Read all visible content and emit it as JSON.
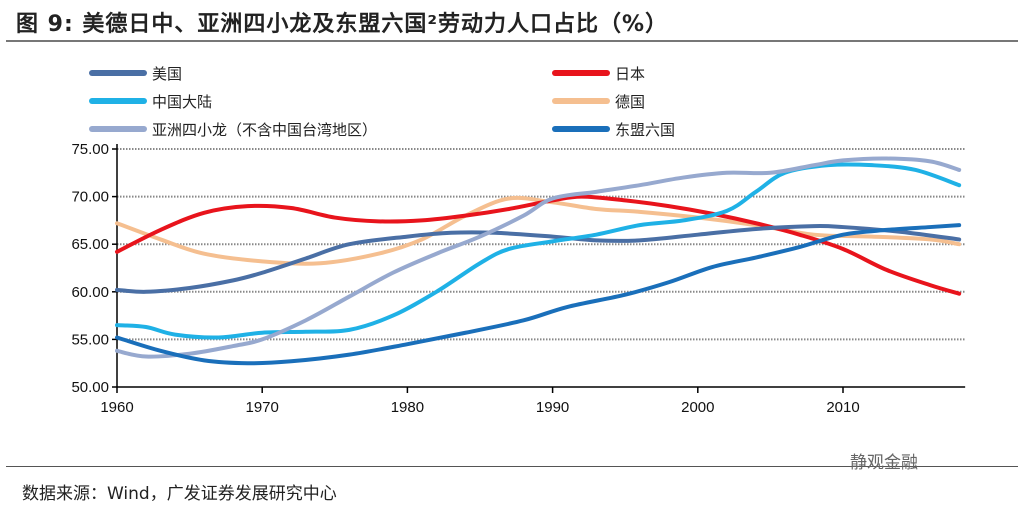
{
  "title": "图 9:  美德日中、亚洲四小龙及东盟六国²劳动力人口占比（%）",
  "source": "数据来源：Wind，广发证券发展研究中心",
  "watermark": "静观金融",
  "chart_data": {
    "type": "line",
    "title": "",
    "xlabel": "",
    "ylabel": "",
    "xlim": [
      1960,
      2018
    ],
    "ylim": [
      50,
      75
    ],
    "x_ticks": [
      1960,
      1970,
      1980,
      1990,
      2000,
      2010
    ],
    "y_ticks": [
      "50.00",
      "55.00",
      "60.00",
      "65.00",
      "70.00",
      "75.00"
    ],
    "grid": "horizontal dotted",
    "legend_position": "top",
    "series": [
      {
        "name": "美国",
        "color": "#4a6fa5",
        "points": [
          [
            1960,
            60.2
          ],
          [
            1962,
            60.0
          ],
          [
            1965,
            60.4
          ],
          [
            1968,
            61.2
          ],
          [
            1970,
            62
          ],
          [
            1973,
            63.5
          ],
          [
            1976,
            65
          ],
          [
            1980,
            65.8
          ],
          [
            1983,
            66.2
          ],
          [
            1986,
            66.2
          ],
          [
            1990,
            65.8
          ],
          [
            1993,
            65.4
          ],
          [
            1996,
            65.4
          ],
          [
            2000,
            66
          ],
          [
            2004,
            66.6
          ],
          [
            2008,
            66.9
          ],
          [
            2010,
            66.8
          ],
          [
            2014,
            66.3
          ],
          [
            2018,
            65.5
          ]
        ]
      },
      {
        "name": "日本",
        "color": "#e8141c",
        "points": [
          [
            1960,
            64.2
          ],
          [
            1963,
            66.5
          ],
          [
            1966,
            68.3
          ],
          [
            1969,
            69
          ],
          [
            1972,
            68.8
          ],
          [
            1975,
            67.8
          ],
          [
            1978,
            67.4
          ],
          [
            1981,
            67.5
          ],
          [
            1984,
            68
          ],
          [
            1987,
            68.7
          ],
          [
            1990,
            69.6
          ],
          [
            1992,
            70
          ],
          [
            1995,
            69.6
          ],
          [
            1998,
            69
          ],
          [
            2001,
            68.2
          ],
          [
            2004,
            67.2
          ],
          [
            2007,
            66
          ],
          [
            2010,
            64.5
          ],
          [
            2013,
            62.3
          ],
          [
            2016,
            60.7
          ],
          [
            2018,
            59.8
          ]
        ]
      },
      {
        "name": "中国大陆",
        "color": "#1fb1e6",
        "points": [
          [
            1960,
            56.5
          ],
          [
            1962,
            56.3
          ],
          [
            1964,
            55.5
          ],
          [
            1967,
            55.2
          ],
          [
            1970,
            55.7
          ],
          [
            1973,
            55.8
          ],
          [
            1976,
            56
          ],
          [
            1979,
            57.5
          ],
          [
            1982,
            60
          ],
          [
            1985,
            63
          ],
          [
            1987,
            64.5
          ],
          [
            1990,
            65.3
          ],
          [
            1993,
            66
          ],
          [
            1996,
            67
          ],
          [
            1999,
            67.5
          ],
          [
            2002,
            68.5
          ],
          [
            2004,
            70.5
          ],
          [
            2006,
            72.5
          ],
          [
            2009,
            73.3
          ],
          [
            2012,
            73.3
          ],
          [
            2015,
            72.8
          ],
          [
            2018,
            71.2
          ]
        ]
      },
      {
        "name": "德国",
        "color": "#f5bf90",
        "points": [
          [
            1960,
            67.2
          ],
          [
            1963,
            65.5
          ],
          [
            1966,
            64
          ],
          [
            1970,
            63.2
          ],
          [
            1974,
            63
          ],
          [
            1978,
            64
          ],
          [
            1981,
            65.5
          ],
          [
            1984,
            68
          ],
          [
            1987,
            69.8
          ],
          [
            1990,
            69.4
          ],
          [
            1993,
            68.7
          ],
          [
            1996,
            68.4
          ],
          [
            2000,
            67.8
          ],
          [
            2004,
            67
          ],
          [
            2008,
            66
          ],
          [
            2012,
            65.8
          ],
          [
            2016,
            65.5
          ],
          [
            2018,
            65
          ]
        ]
      },
      {
        "name": "亚洲四小龙（不含中国台湾地区）",
        "color": "#97a9cf",
        "points": [
          [
            1960,
            53.8
          ],
          [
            1962,
            53.2
          ],
          [
            1965,
            53.5
          ],
          [
            1968,
            54.3
          ],
          [
            1970,
            55
          ],
          [
            1973,
            57
          ],
          [
            1976,
            59.5
          ],
          [
            1979,
            62
          ],
          [
            1982,
            64
          ],
          [
            1985,
            65.8
          ],
          [
            1988,
            68
          ],
          [
            1990,
            69.8
          ],
          [
            1993,
            70.5
          ],
          [
            1996,
            71.2
          ],
          [
            1999,
            72
          ],
          [
            2002,
            72.5
          ],
          [
            2005,
            72.5
          ],
          [
            2008,
            73.3
          ],
          [
            2010,
            73.8
          ],
          [
            2013,
            74
          ],
          [
            2016,
            73.7
          ],
          [
            2018,
            72.8
          ]
        ]
      },
      {
        "name": "东盟六国",
        "color": "#1a6fba",
        "points": [
          [
            1960,
            55.2
          ],
          [
            1963,
            53.8
          ],
          [
            1966,
            52.8
          ],
          [
            1969,
            52.5
          ],
          [
            1972,
            52.7
          ],
          [
            1976,
            53.4
          ],
          [
            1980,
            54.5
          ],
          [
            1984,
            55.7
          ],
          [
            1988,
            57
          ],
          [
            1991,
            58.4
          ],
          [
            1995,
            59.7
          ],
          [
            1998,
            61
          ],
          [
            2001,
            62.6
          ],
          [
            2004,
            63.6
          ],
          [
            2007,
            64.7
          ],
          [
            2010,
            66
          ],
          [
            2013,
            66.5
          ],
          [
            2016,
            66.8
          ],
          [
            2018,
            67
          ]
        ]
      }
    ]
  }
}
